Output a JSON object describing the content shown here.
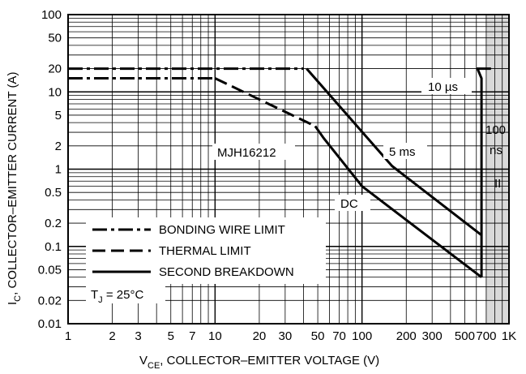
{
  "chart_data": {
    "type": "line",
    "title": "",
    "xlabel": {
      "main": "V",
      "sub": "CE",
      "rest": ", COLLECTOR–EMITTER VOLTAGE (V)"
    },
    "ylabel": {
      "main": "I",
      "sub": "C",
      "rest": ", COLLECTOR–EMITTER CURRENT (A)"
    },
    "x_scale": "log",
    "y_scale": "log",
    "xlim": [
      1,
      1000
    ],
    "ylim": [
      0.01,
      100
    ],
    "grid": true,
    "x_ticks": [
      {
        "v": 1,
        "label": "1"
      },
      {
        "v": 2,
        "label": "2"
      },
      {
        "v": 3,
        "label": "3"
      },
      {
        "v": 5,
        "label": "5"
      },
      {
        "v": 7,
        "label": "7"
      },
      {
        "v": 10,
        "label": "10"
      },
      {
        "v": 20,
        "label": "20"
      },
      {
        "v": 30,
        "label": "30"
      },
      {
        "v": 50,
        "label": "50"
      },
      {
        "v": 70,
        "label": "70"
      },
      {
        "v": 100,
        "label": "100"
      },
      {
        "v": 200,
        "label": "200"
      },
      {
        "v": 300,
        "label": "300"
      },
      {
        "v": 500,
        "label": "500"
      },
      {
        "v": 700,
        "label": "700"
      },
      {
        "v": 1000,
        "label": "1K"
      }
    ],
    "y_ticks": [
      {
        "v": 100,
        "label": "100"
      },
      {
        "v": 50,
        "label": "50"
      },
      {
        "v": 20,
        "label": "20"
      },
      {
        "v": 10,
        "label": "10"
      },
      {
        "v": 5,
        "label": "5"
      },
      {
        "v": 2,
        "label": "2"
      },
      {
        "v": 1,
        "label": "1"
      },
      {
        "v": 0.5,
        "label": "0.5"
      },
      {
        "v": 0.2,
        "label": "0.2"
      },
      {
        "v": 0.1,
        "label": "0.1"
      },
      {
        "v": 0.05,
        "label": "0.05"
      },
      {
        "v": 0.02,
        "label": "0.02"
      },
      {
        "v": 0.01,
        "label": "0.01"
      }
    ],
    "series": [
      {
        "style": "dashdot",
        "points": [
          [
            1,
            20
          ],
          [
            40,
            20
          ]
        ]
      },
      {
        "style": "dashdot",
        "points": [
          [
            1,
            15
          ],
          [
            10,
            15
          ]
        ]
      },
      {
        "style": "dashdot",
        "points": [
          [
            600,
            20
          ],
          [
            800,
            20
          ]
        ]
      },
      {
        "style": "dashed",
        "points": [
          [
            10,
            15
          ],
          [
            48,
            3.6
          ]
        ]
      },
      {
        "style": "solid",
        "points": [
          [
            48,
            3.6
          ],
          [
            55,
            2.5
          ],
          [
            100,
            0.6
          ],
          [
            650,
            0.04
          ]
        ]
      },
      {
        "style": "solid",
        "points": [
          [
            42,
            20
          ],
          [
            160,
            1.1
          ],
          [
            650,
            0.14
          ]
        ]
      },
      {
        "style": "solid",
        "points": [
          [
            610,
            20
          ],
          [
            650,
            15
          ],
          [
            650,
            0.04
          ]
        ]
      }
    ],
    "legend": {
      "placement": "bottom-left",
      "entries": [
        {
          "style": "dashdot",
          "label": "BONDING WIRE LIMIT"
        },
        {
          "style": "dashed",
          "label": "THERMAL LIMIT"
        },
        {
          "style": "solid",
          "label": "SECOND BREAKDOWN"
        }
      ]
    },
    "annotations": [
      {
        "id": "a-10us",
        "text": "10 µs"
      },
      {
        "id": "a-5ms",
        "text": "5 ms"
      },
      {
        "id": "a-dc",
        "text": "DC"
      },
      {
        "id": "a-mjh",
        "text": "MJH16212"
      },
      {
        "id": "a-100",
        "text": "100"
      },
      {
        "id": "a-ns",
        "text": "ns"
      },
      {
        "id": "a-II",
        "text": "II"
      }
    ],
    "temp_label": {
      "main": "T",
      "sub": "J",
      "rest": " = 25°C"
    },
    "shaded_region": {
      "x": [
        700,
        1000
      ],
      "color": "#d9d9d9"
    }
  }
}
